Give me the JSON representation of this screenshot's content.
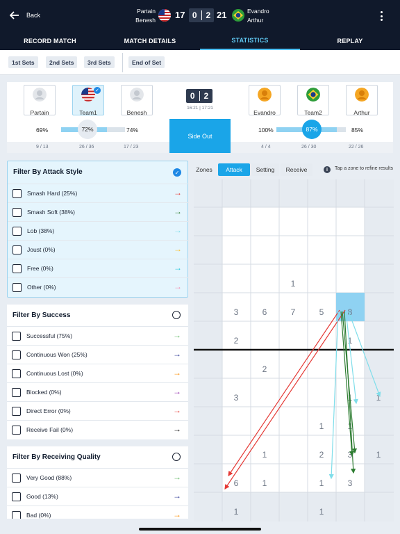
{
  "header": {
    "back_label": "Back",
    "team_left_players": [
      "Partain",
      "Benesh"
    ],
    "team_right_players": [
      "Evandro",
      "Arthur"
    ],
    "score_left": "17",
    "sets_left": "0",
    "sets_right": "2",
    "score_right": "21"
  },
  "tabs": [
    "RECORD MATCH",
    "MATCH DETAILS",
    "STATISTICS",
    "REPLAY"
  ],
  "set_filters": [
    "1st Sets",
    "2nd Sets",
    "3rd Sets",
    "End of Set"
  ],
  "panel": {
    "players_left": [
      "Partain",
      "Team1",
      "Benesh"
    ],
    "players_right": [
      "Evandro",
      "Team2",
      "Arthur"
    ],
    "set_score_left": "0",
    "set_score_right": "2",
    "set_times": "16:21 | 17:21",
    "side_out_label": "Side Out",
    "left_pcts": [
      "69%",
      "72%",
      "74%"
    ],
    "right_pcts": [
      "100%",
      "87%",
      "85%"
    ],
    "left_fracs": [
      "9 / 13",
      "26 / 36",
      "17 / 23"
    ],
    "right_fracs": [
      "4 / 4",
      "26 / 30",
      "22 / 26"
    ],
    "left_team_level": 0.72,
    "right_team_level": 0.87
  },
  "attack_filter": {
    "title": "Filter By Attack Style",
    "items": [
      {
        "label": "Smash Hard (25%)",
        "color": "#e53935"
      },
      {
        "label": "Smash Soft (38%)",
        "color": "#2e7d32"
      },
      {
        "label": "Lob (38%)",
        "color": "#80deea"
      },
      {
        "label": "Joust (0%)",
        "color": "#fbc02d"
      },
      {
        "label": "Free (0%)",
        "color": "#26c6da"
      },
      {
        "label": "Other (0%)",
        "color": "#f48fb1"
      }
    ]
  },
  "success_filter": {
    "title": "Filter By Success",
    "items": [
      {
        "label": "Successful (75%)",
        "color": "#66bb6a"
      },
      {
        "label": "Continuous Won (25%)",
        "color": "#283593"
      },
      {
        "label": "Continuous Lost (0%)",
        "color": "#fb8c00"
      },
      {
        "label": "Blocked (0%)",
        "color": "#8e24aa"
      },
      {
        "label": "Direct Error (0%)",
        "color": "#e53935"
      },
      {
        "label": "Receive Fail (0%)",
        "color": "#111111"
      }
    ]
  },
  "receiving_filter": {
    "title": "Filter By Receiving Quality",
    "items": [
      {
        "label": "Very Good (88%)",
        "color": "#66bb6a"
      },
      {
        "label": "Good (13%)",
        "color": "#283593"
      },
      {
        "label": "Bad (0%)",
        "color": "#fb8c00"
      }
    ]
  },
  "zone_tabs": {
    "label": "Zones",
    "options": [
      "Attack",
      "Setting",
      "Receive"
    ],
    "hint": "Tap a zone to refine results"
  },
  "court_numbers": {
    "r4": [
      "1"
    ],
    "r5": [
      "3",
      "6",
      "7",
      "5",
      "8"
    ],
    "r6": [
      "2",
      "1"
    ],
    "r7": [
      "2"
    ],
    "r8": [
      "3",
      "1",
      "1"
    ],
    "r9": [
      "1",
      "1"
    ],
    "r10": [
      "1",
      "2",
      "3",
      "1"
    ],
    "r11": [
      "6",
      "1",
      "1",
      "3"
    ],
    "r12": [
      "1",
      "1"
    ]
  }
}
